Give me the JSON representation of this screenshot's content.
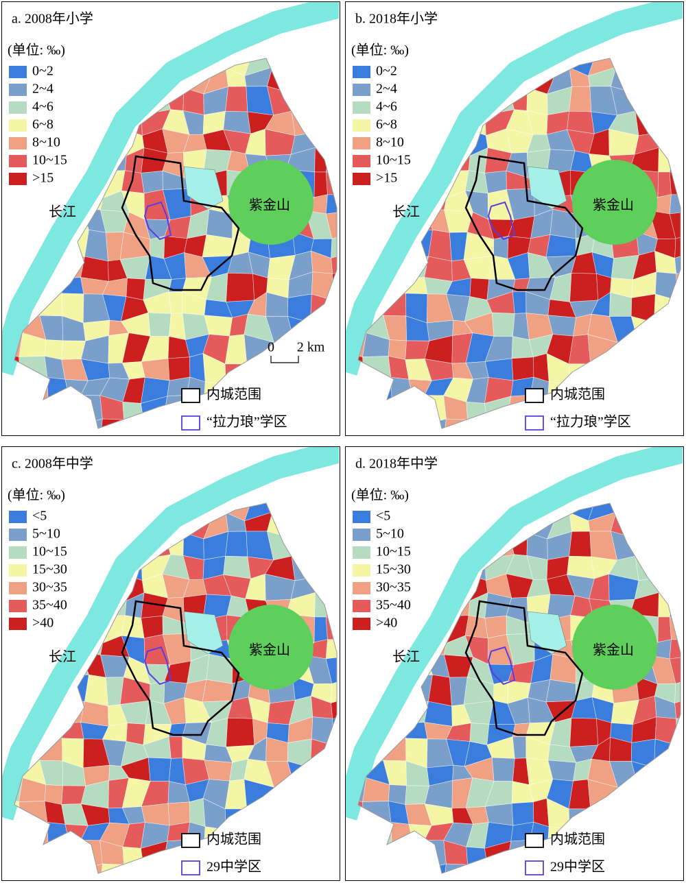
{
  "panels": [
    {
      "title": "a. 2008年小学",
      "unit": "(单位: ‰)",
      "legend": [
        {
          "label": "0~2",
          "color": "#3b7ddd"
        },
        {
          "label": "2~4",
          "color": "#7a9fca"
        },
        {
          "label": "4~6",
          "color": "#b5dcc0"
        },
        {
          "label": "6~8",
          "color": "#f5f5a6"
        },
        {
          "label": "8~10",
          "color": "#f0a184"
        },
        {
          "label": "10~15",
          "color": "#e55b5b"
        },
        {
          "label": ">15",
          "color": "#cc1f1f"
        }
      ],
      "river_label": "长江",
      "mountain_label": "紫金山",
      "scale_bar": {
        "start": "0",
        "end": "2 km"
      },
      "boundary_legend": [
        {
          "label": "内城范围",
          "color": "#000000"
        },
        {
          "label": "“拉力琅”学区",
          "color": "#5a3de0"
        }
      ]
    },
    {
      "title": "b. 2018年小学",
      "unit": "(单位: ‰)",
      "legend": [
        {
          "label": "0~2",
          "color": "#3b7ddd"
        },
        {
          "label": "2~4",
          "color": "#7a9fca"
        },
        {
          "label": "4~6",
          "color": "#b5dcc0"
        },
        {
          "label": "6~8",
          "color": "#f5f5a6"
        },
        {
          "label": "8~10",
          "color": "#f0a184"
        },
        {
          "label": "10~15",
          "color": "#e55b5b"
        },
        {
          "label": ">15",
          "color": "#cc1f1f"
        }
      ],
      "river_label": "长江",
      "mountain_label": "紫金山",
      "boundary_legend": [
        {
          "label": "内城范围",
          "color": "#000000"
        },
        {
          "label": "“拉力琅”学区",
          "color": "#5a3de0"
        }
      ]
    },
    {
      "title": "c. 2008年中学",
      "unit": "(单位: ‰)",
      "legend": [
        {
          "label": "<5",
          "color": "#3b7ddd"
        },
        {
          "label": "5~10",
          "color": "#7a9fca"
        },
        {
          "label": "10~15",
          "color": "#b5dcc0"
        },
        {
          "label": "15~30",
          "color": "#f5f5a6"
        },
        {
          "label": "30~35",
          "color": "#f0a184"
        },
        {
          "label": "35~40",
          "color": "#e55b5b"
        },
        {
          "label": ">40",
          "color": "#cc1f1f"
        }
      ],
      "river_label": "长江",
      "mountain_label": "紫金山",
      "boundary_legend": [
        {
          "label": "内城范围",
          "color": "#000000"
        },
        {
          "label": "29中学区",
          "color": "#5a3de0"
        }
      ]
    },
    {
      "title": "d. 2018年中学",
      "unit": "(单位: ‰)",
      "legend": [
        {
          "label": "<5",
          "color": "#3b7ddd"
        },
        {
          "label": "5~10",
          "color": "#7a9fca"
        },
        {
          "label": "10~15",
          "color": "#b5dcc0"
        },
        {
          "label": "15~30",
          "color": "#f5f5a6"
        },
        {
          "label": "30~35",
          "color": "#f0a184"
        },
        {
          "label": "35~40",
          "color": "#e55b5b"
        },
        {
          "label": ">40",
          "color": "#cc1f1f"
        }
      ],
      "river_label": "长江",
      "mountain_label": "紫金山",
      "boundary_legend": [
        {
          "label": "内城范围",
          "color": "#000000"
        },
        {
          "label": "29中学区",
          "color": "#5a3de0"
        }
      ]
    }
  ]
}
